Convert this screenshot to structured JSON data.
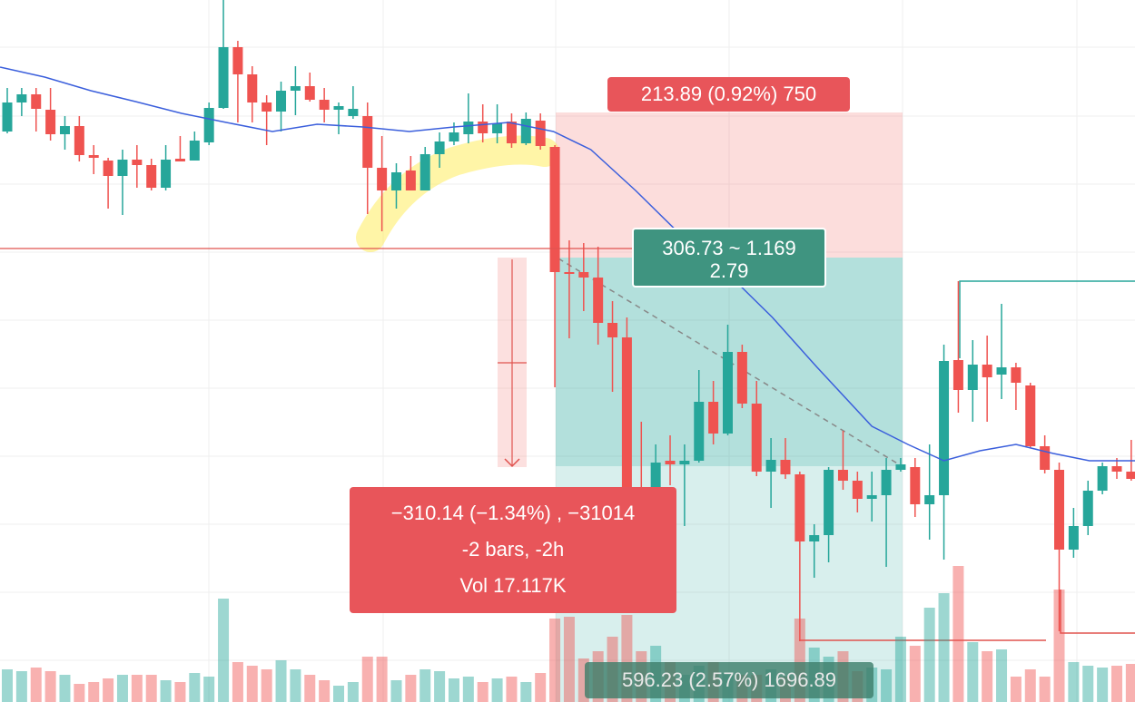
{
  "chart_data": {
    "type": "candlestick",
    "up_color": "#26a69a",
    "down_color": "#ef5350",
    "ma_color": "#3b5fdc",
    "line_color": "#e0534f",
    "ylim": [
      0,
      774
    ],
    "vlim": [
      0,
      500
    ],
    "open": [
      629,
      661,
      670,
      653,
      626,
      635,
      603,
      597,
      580,
      598,
      592,
      567,
      599,
      597,
      617,
      655,
      722,
      692,
      661,
      651,
      674,
      679,
      664,
      653,
      646,
      646,
      589,
      564,
      586,
      564,
      604,
      618,
      626,
      640,
      627,
      640,
      616,
      641,
      612,
      474,
      474,
      468,
      418,
      402,
      234,
      229,
      266,
      262,
      266,
      331,
      296,
      386,
      329,
      254,
      267,
      251,
      177,
      184,
      256,
      244,
      224,
      228,
      256,
      259,
      218,
      228,
      377,
      344,
      372,
      361,
      369,
      349,
      282,
      256,
      168,
      194,
      233,
      260,
      254
    ],
    "high": [
      677,
      677,
      677,
      677,
      646,
      646,
      614,
      600,
      609,
      614,
      599,
      614,
      624,
      629,
      661,
      774,
      729,
      701,
      669,
      684,
      701,
      694,
      677,
      661,
      679,
      661,
      624,
      594,
      602,
      612,
      628,
      639,
      671,
      659,
      659,
      649,
      650,
      649,
      614,
      509,
      506,
      502,
      442,
      424,
      309,
      284,
      294,
      284,
      366,
      354,
      416,
      394,
      354,
      291,
      291,
      254,
      196,
      259,
      299,
      254,
      254,
      269,
      269,
      269,
      284,
      394,
      464,
      399,
      404,
      439,
      374,
      352,
      294,
      264,
      214,
      244,
      264,
      269,
      289
    ],
    "low": [
      627,
      646,
      629,
      619,
      609,
      596,
      582,
      544,
      537,
      567,
      564,
      564,
      596,
      597,
      614,
      654,
      639,
      639,
      614,
      629,
      647,
      662,
      639,
      626,
      643,
      538,
      519,
      544,
      564,
      564,
      589,
      614,
      616,
      617,
      616,
      611,
      614,
      609,
      347,
      401,
      431,
      394,
      342,
      199,
      194,
      214,
      239,
      194,
      264,
      284,
      294,
      324,
      249,
      214,
      246,
      67,
      137,
      154,
      234,
      209,
      199,
      149,
      254,
      204,
      179,
      157,
      319,
      309,
      309,
      334,
      322,
      280,
      252,
      78,
      159,
      184,
      229,
      246,
      244
    ],
    "close": [
      661,
      670,
      654,
      626,
      635,
      603,
      600,
      580,
      598,
      592,
      567,
      598,
      596,
      619,
      655,
      722,
      692,
      661,
      651,
      674,
      679,
      664,
      653,
      657,
      654,
      589,
      564,
      584,
      564,
      604,
      618,
      628,
      640,
      627,
      638,
      616,
      643,
      613,
      474,
      472,
      468,
      418,
      402,
      214,
      229,
      264,
      262,
      266,
      331,
      296,
      386,
      329,
      254,
      267,
      251,
      177,
      184,
      256,
      244,
      224,
      228,
      256,
      262,
      218,
      228,
      376,
      344,
      372,
      358,
      369,
      352,
      282,
      256,
      168,
      194,
      233,
      260,
      254,
      246
    ],
    "volume": [
      36,
      34,
      38,
      34,
      30,
      20,
      22,
      26,
      30,
      30,
      30,
      24,
      22,
      32,
      28,
      114,
      44,
      40,
      36,
      46,
      36,
      30,
      24,
      18,
      22,
      50,
      50,
      24,
      30,
      36,
      34,
      26,
      28,
      22,
      26,
      28,
      22,
      32,
      92,
      94,
      48,
      56,
      72,
      96,
      56,
      62,
      44,
      30,
      40,
      44,
      32,
      30,
      30,
      36,
      28,
      92,
      60,
      50,
      56,
      34,
      38,
      36,
      72,
      62,
      104,
      120,
      150,
      66,
      56,
      58,
      28,
      36,
      28,
      124,
      44,
      40,
      38,
      40,
      42
    ],
    "ma": {
      "x": [
        -0.5,
        2.6,
        5.8,
        8.9,
        12.1,
        15.2,
        18.4,
        21.5,
        24.7,
        27.9,
        31,
        34.8,
        37.9,
        40.5,
        43.6,
        46.8,
        49.9,
        53.1,
        56.2,
        60,
        62.5,
        65,
        67.5,
        70,
        72.6,
        75.1,
        78.3
      ],
      "values": [
        700,
        689,
        674,
        662,
        649,
        639,
        629,
        637,
        634,
        629,
        634,
        639,
        629,
        609,
        564,
        514,
        474,
        424,
        369,
        304,
        284,
        266,
        277,
        284,
        274,
        266,
        266
      ]
    },
    "hline": 500,
    "target_label": "213.89 (0.92%) 750",
    "ratio_label": [
      "306.73 ~ 1.169",
      "2.79"
    ],
    "measure_label": [
      "−310.14 (−1.34%) , −31014",
      "-2 bars, -2h",
      "Vol 17.117K"
    ],
    "stop_label": "596.23 (2.57%) 1696.89"
  }
}
